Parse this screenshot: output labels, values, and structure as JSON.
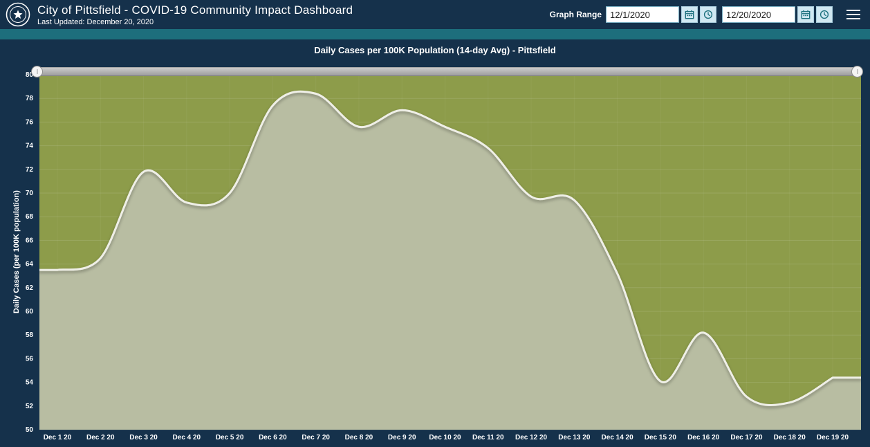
{
  "header": {
    "title": "City of Pittsfield - COVID-19 Community Impact Dashboard",
    "last_updated": "Last Updated: December 20, 2020",
    "graph_range_label": "Graph Range",
    "start_date": "12/1/2020",
    "end_date": "12/20/2020",
    "icons": {
      "seal": "city-seal",
      "calendar": "calendar-icon",
      "clock": "clock-icon",
      "menu": "hamburger-menu-icon"
    }
  },
  "colors": {
    "header_bg": "#15314b",
    "teal_accent": "#1d6e7c",
    "button_bg": "#d0e8f2",
    "button_icon": "#1b6f7d",
    "text": "#ffffff"
  },
  "chart_data": {
    "type": "area",
    "title": "Daily Cases per 100K Population (14-day Avg) - Pittsfield",
    "ylabel": "Daily Cases (per 100K population)",
    "xlabel": "",
    "ylim": [
      50,
      80
    ],
    "ytick_step": 2,
    "grid": true,
    "legend": "none",
    "categories": [
      "Dec 1 20",
      "Dec 2 20",
      "Dec 3 20",
      "Dec 4 20",
      "Dec 5 20",
      "Dec 6 20",
      "Dec 7 20",
      "Dec 8 20",
      "Dec 9 20",
      "Dec 10 20",
      "Dec 11 20",
      "Dec 12 20",
      "Dec 13 20",
      "Dec 14 20",
      "Dec 15 20",
      "Dec 16 20",
      "Dec 17 20",
      "Dec 18 20",
      "Dec 19 20"
    ],
    "values": [
      63.5,
      64.5,
      71.8,
      69.2,
      70.0,
      77.4,
      78.4,
      75.6,
      77.0,
      75.6,
      73.8,
      69.7,
      69.4,
      63.2,
      54.1,
      58.2,
      52.8,
      52.3,
      54.4
    ],
    "colors": {
      "plot_bg": "#8d9c4a",
      "fill": "#b8bda2",
      "line": "#efefe7",
      "axis_text": "#ffffff"
    }
  }
}
